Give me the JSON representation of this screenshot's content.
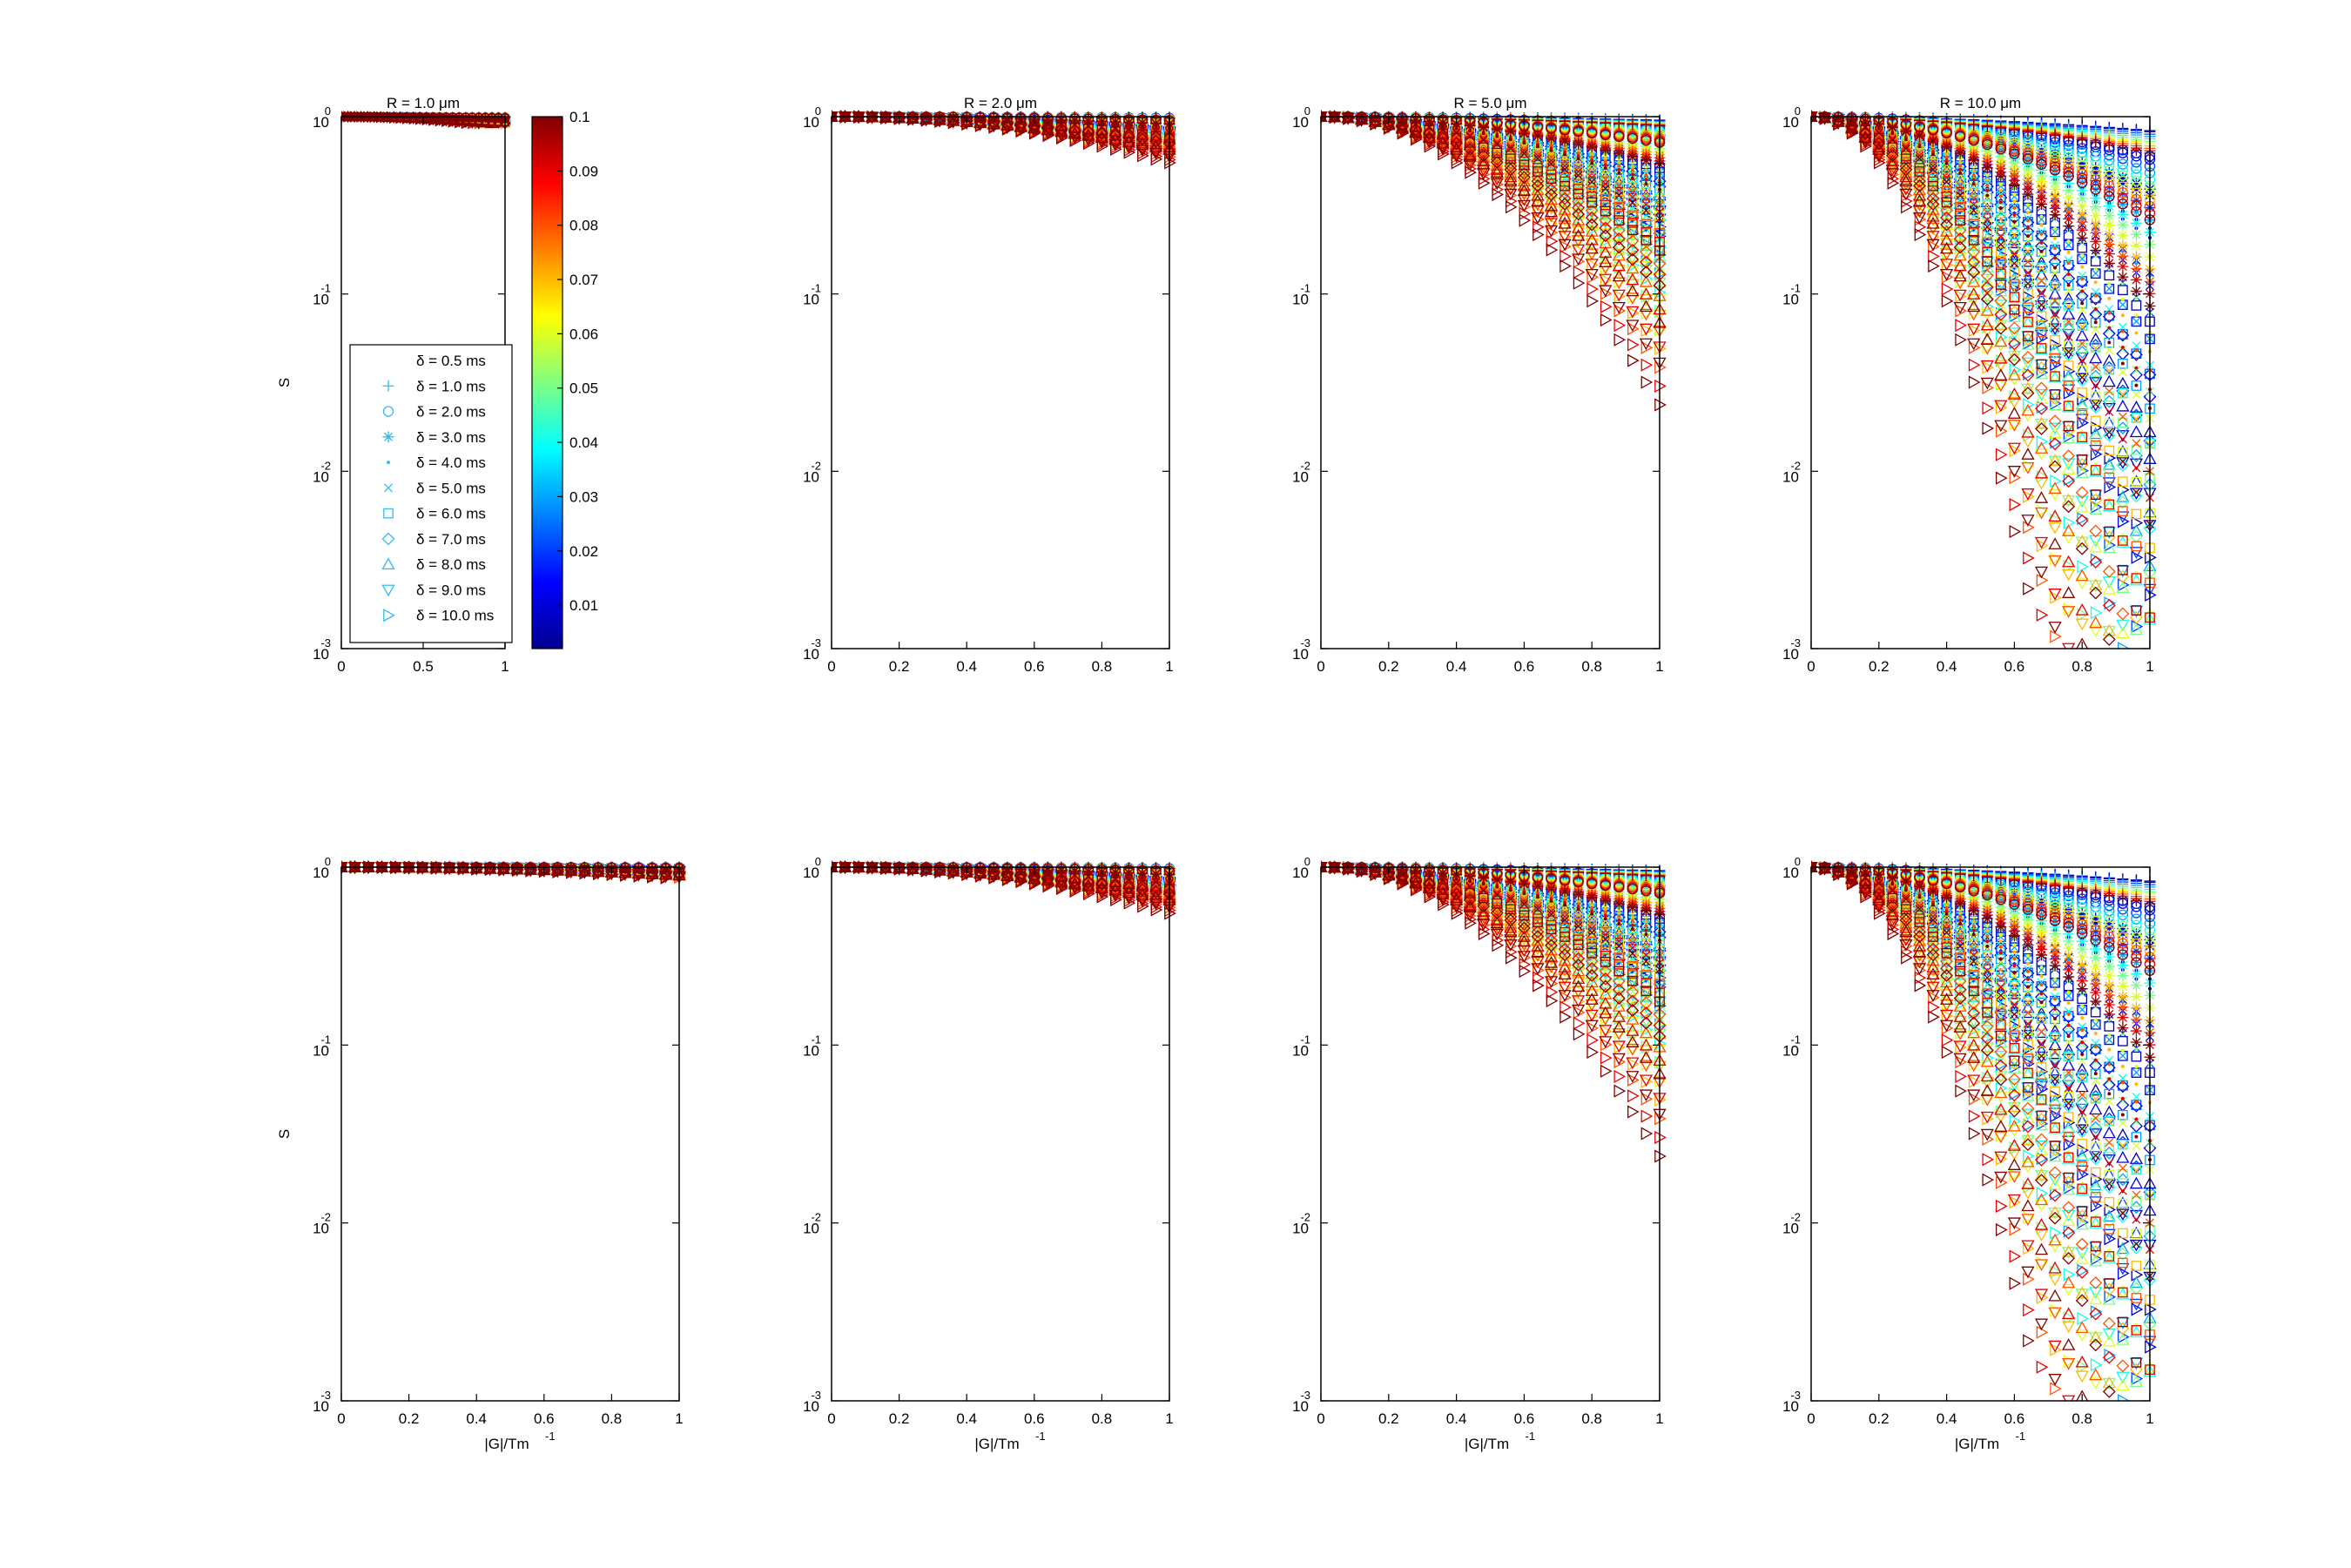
{
  "chart_data": [
    {
      "type": "scatter",
      "title": "R = 1.0 μm",
      "xlabel": "",
      "ylabel": "S",
      "xlim": [
        0,
        1
      ],
      "ylim": [
        0.001,
        1
      ],
      "yscale": "log",
      "R_um": 1.0,
      "x_ticks": [
        "0",
        "0.5",
        "1"
      ],
      "y_ticks": [
        "10",
        "10",
        "10",
        "10"
      ],
      "y_tick_exponents": [
        "0",
        "-1",
        "-2",
        "-3"
      ],
      "min_log_signal": -0.04
    },
    {
      "type": "scatter",
      "title": "R = 2.0 μm",
      "xlabel": "",
      "ylabel": "",
      "xlim": [
        0,
        1
      ],
      "ylim": [
        0.001,
        1
      ],
      "yscale": "log",
      "R_um": 2.0,
      "x_ticks": [
        "0",
        "0.2",
        "0.4",
        "0.6",
        "0.8",
        "1"
      ],
      "y_ticks": [
        "10",
        "10",
        "10",
        "10"
      ],
      "y_tick_exponents": [
        "0",
        "-1",
        "-2",
        "-3"
      ],
      "min_log_signal": -1.6
    },
    {
      "type": "scatter",
      "title": "R = 5.0 μm",
      "xlabel": "",
      "ylabel": "",
      "xlim": [
        0,
        1
      ],
      "ylim": [
        0.001,
        1
      ],
      "yscale": "log",
      "R_um": 5.0,
      "x_ticks": [
        "0",
        "0.2",
        "0.4",
        "0.6",
        "0.8",
        "1"
      ],
      "y_ticks": [
        "10",
        "10",
        "10",
        "10"
      ],
      "y_tick_exponents": [
        "0",
        "-1",
        "-2",
        "-3"
      ],
      "min_log_signal": -3.0
    },
    {
      "type": "scatter",
      "title": "R = 10.0 μm",
      "xlabel": "",
      "ylabel": "",
      "xlim": [
        0,
        1
      ],
      "ylim": [
        0.001,
        1
      ],
      "yscale": "log",
      "R_um": 10.0,
      "x_ticks": [
        "0",
        "0.2",
        "0.4",
        "0.6",
        "0.8",
        "1"
      ],
      "y_ticks": [
        "10",
        "10",
        "10",
        "10"
      ],
      "y_tick_exponents": [
        "0",
        "-1",
        "-2",
        "-3"
      ],
      "min_log_signal": -3.0
    },
    {
      "type": "scatter",
      "title": "",
      "xlabel": "|G|/Tm",
      "xlabel_exponent": "-1",
      "ylabel": "S",
      "xlim": [
        0,
        1
      ],
      "ylim": [
        0.001,
        1
      ],
      "yscale": "log",
      "R_um": 1.0,
      "x_ticks": [
        "0",
        "0.2",
        "0.4",
        "0.6",
        "0.8",
        "1"
      ],
      "y_ticks": [
        "10",
        "10",
        "10",
        "10"
      ],
      "y_tick_exponents": [
        "0",
        "-1",
        "-2",
        "-3"
      ],
      "min_log_signal": -0.06
    },
    {
      "type": "scatter",
      "title": "",
      "xlabel": "|G|/Tm",
      "xlabel_exponent": "-1",
      "ylabel": "",
      "xlim": [
        0,
        1
      ],
      "ylim": [
        0.001,
        1
      ],
      "yscale": "log",
      "R_um": 2.0,
      "x_ticks": [
        "0",
        "0.2",
        "0.4",
        "0.6",
        "0.8",
        "1"
      ],
      "y_ticks": [
        "10",
        "10",
        "10",
        "10"
      ],
      "y_tick_exponents": [
        "0",
        "-1",
        "-2",
        "-3"
      ],
      "min_log_signal": -1.2
    },
    {
      "type": "scatter",
      "title": "",
      "xlabel": "|G|/Tm",
      "xlabel_exponent": "-1",
      "ylabel": "",
      "xlim": [
        0,
        1
      ],
      "ylim": [
        0.001,
        1
      ],
      "yscale": "log",
      "R_um": 5.0,
      "x_ticks": [
        "0",
        "0.2",
        "0.4",
        "0.6",
        "0.8",
        "1"
      ],
      "y_ticks": [
        "10",
        "10",
        "10",
        "10"
      ],
      "y_tick_exponents": [
        "0",
        "-1",
        "-2",
        "-3"
      ],
      "min_log_signal": -3.0
    },
    {
      "type": "scatter",
      "title": "",
      "xlabel": "|G|/Tm",
      "xlabel_exponent": "-1",
      "ylabel": "",
      "xlim": [
        0,
        1
      ],
      "ylim": [
        0.001,
        1
      ],
      "yscale": "log",
      "R_um": 10.0,
      "x_ticks": [
        "0",
        "0.2",
        "0.4",
        "0.6",
        "0.8",
        "1"
      ],
      "y_ticks": [
        "10",
        "10",
        "10",
        "10"
      ],
      "y_tick_exponents": [
        "0",
        "-1",
        "-2",
        "-3"
      ],
      "min_log_signal": -3.0
    }
  ],
  "colorbar": {
    "label_values": [
      "0.1",
      "0.09",
      "0.08",
      "0.07",
      "0.06",
      "0.05",
      "0.04",
      "0.03",
      "0.02",
      "0.01"
    ],
    "range": [
      0.002,
      0.1
    ],
    "colormap": "jet",
    "colors": [
      "#00008f",
      "#0000ff",
      "#0080ff",
      "#00ffff",
      "#80ff80",
      "#ffff00",
      "#ff8000",
      "#ff0000",
      "#800000"
    ]
  },
  "legend": {
    "placement": "inside lower-left of first panel",
    "entries": [
      {
        "label": "δ = 0.5 ms",
        "marker": "none"
      },
      {
        "label": "δ = 1.0 ms",
        "marker": "plus"
      },
      {
        "label": "δ = 2.0 ms",
        "marker": "circle"
      },
      {
        "label": "δ = 3.0 ms",
        "marker": "asterisk"
      },
      {
        "label": "δ = 4.0 ms",
        "marker": "point"
      },
      {
        "label": "δ = 5.0 ms",
        "marker": "cross"
      },
      {
        "label": "δ = 6.0 ms",
        "marker": "square"
      },
      {
        "label": "δ = 7.0 ms",
        "marker": "diamond"
      },
      {
        "label": "δ = 8.0 ms",
        "marker": "triangle-up"
      },
      {
        "label": "δ = 9.0 ms",
        "marker": "triangle-down"
      },
      {
        "label": "δ = 10.0 ms",
        "marker": "triangle-right"
      }
    ],
    "marker_color": "#33bbee"
  },
  "delta_ms": [
    0.5,
    1.0,
    2.0,
    3.0,
    4.0,
    5.0,
    6.0,
    7.0,
    8.0,
    9.0,
    10.0
  ],
  "Delta_s_samples": [
    0.005,
    0.01,
    0.02,
    0.03,
    0.04,
    0.05,
    0.06,
    0.07,
    0.08,
    0.09,
    0.1
  ],
  "G_samples": 25
}
